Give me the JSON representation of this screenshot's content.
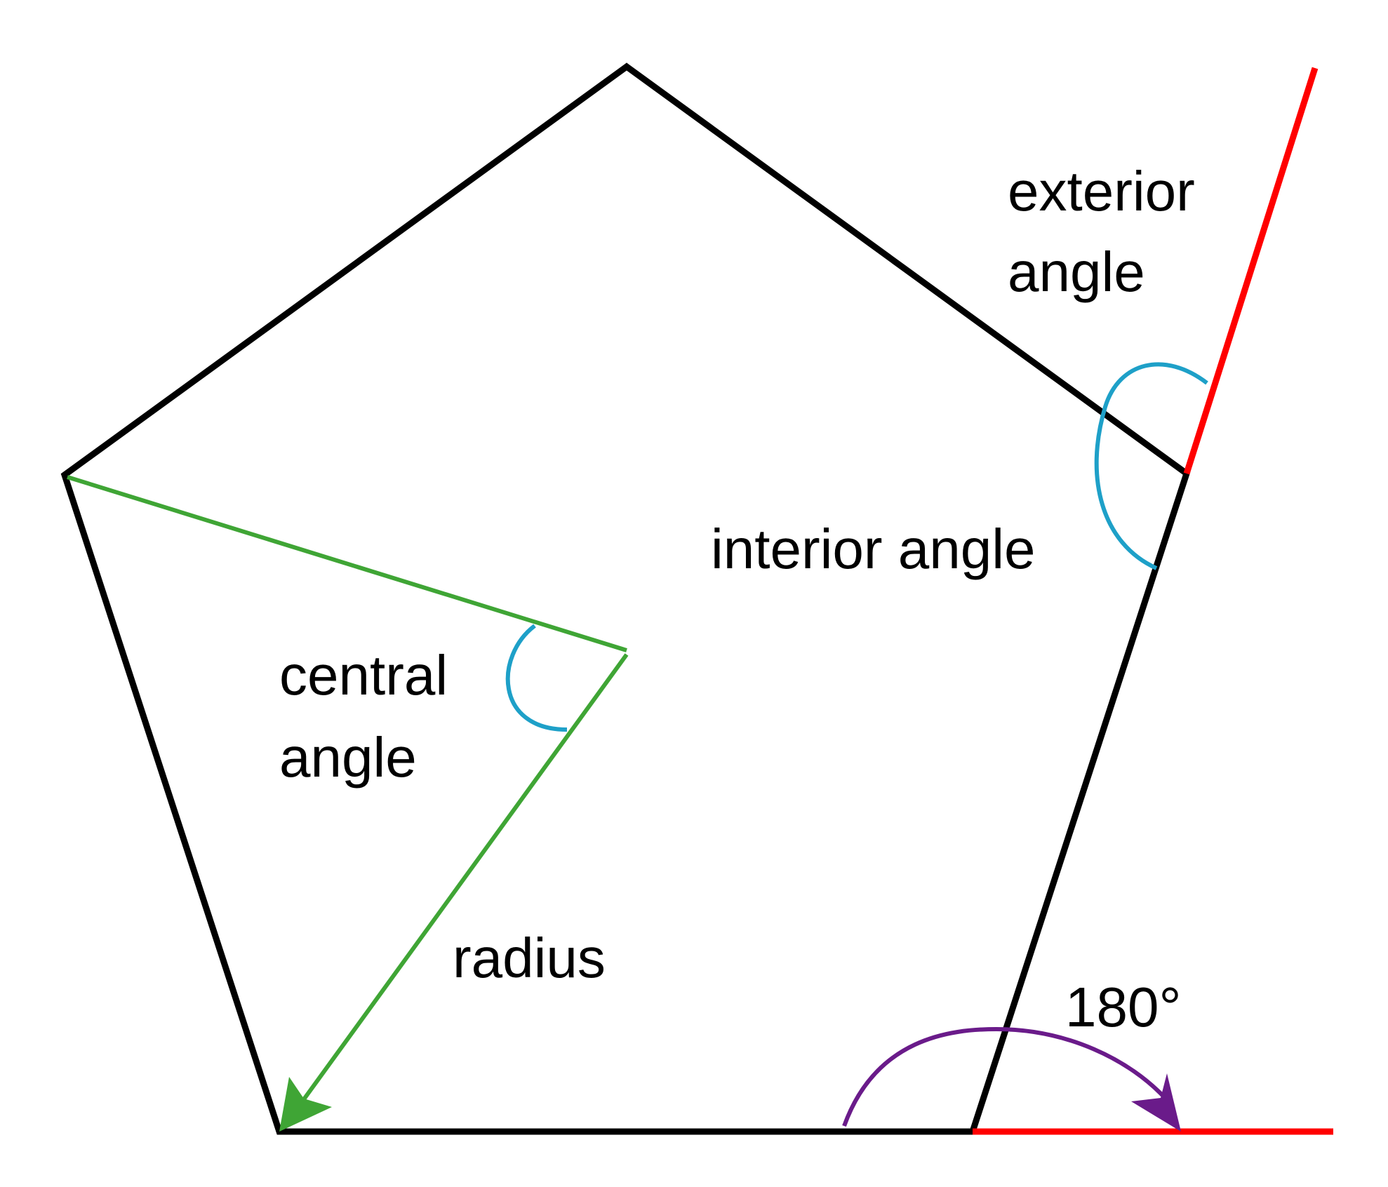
{
  "labels": {
    "exterior_angle_line1": "exterior",
    "exterior_angle_line2": "angle",
    "interior_angle": "interior angle",
    "central_angle_line1": "central",
    "central_angle_line2": "angle",
    "radius": "radius",
    "straight_angle": "180°"
  },
  "colors": {
    "pentagon": "#000000",
    "radius": "#3fa535",
    "angle_arc": "#1ea0c8",
    "extension": "#ff0000",
    "straight_arc": "#6a1b8a"
  }
}
